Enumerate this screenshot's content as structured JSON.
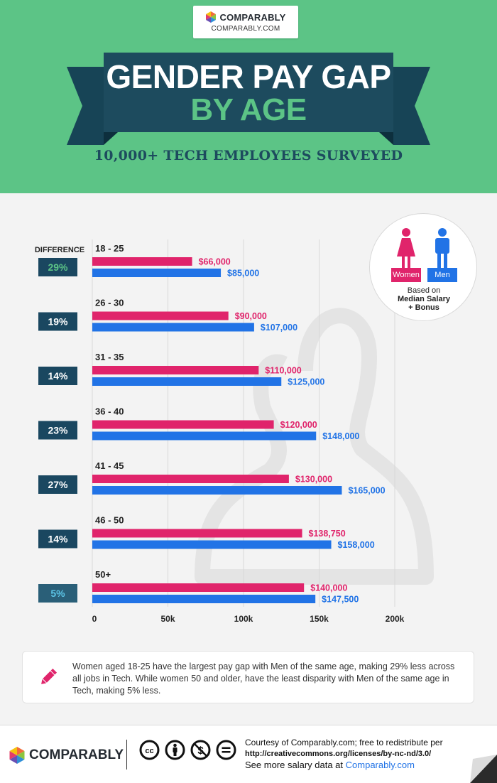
{
  "brand": {
    "name": "COMPARABLY",
    "url": "COMPARABLY.COM"
  },
  "header": {
    "title_line1": "GENDER PAY GAP",
    "title_line2": "BY AGE",
    "subtitle": "10,000+ TECH EMPLOYEES SURVEYED"
  },
  "legend": {
    "women": "Women",
    "men": "Men",
    "note_line1": "Based on",
    "note_line2": "Median Salary",
    "note_line3": "+ Bonus"
  },
  "colors": {
    "women": "#e0246b",
    "men": "#2173e6",
    "diff_dark": "#1a4760",
    "diff_light": "#2a5f78",
    "header_green": "#5cc486"
  },
  "chart_data": {
    "type": "bar",
    "orientation": "horizontal",
    "difference_header": "DIFFERENCE",
    "categories": [
      "18 - 25",
      "26 - 30",
      "31 - 35",
      "36 - 40",
      "41 - 45",
      "46 - 50",
      "50+"
    ],
    "series": [
      {
        "name": "Women",
        "values": [
          66000,
          90000,
          110000,
          120000,
          130000,
          138750,
          140000
        ],
        "labels": [
          "$66,000",
          "$90,000",
          "$110,000",
          "$120,000",
          "$130,000",
          "$138,750",
          "$140,000"
        ]
      },
      {
        "name": "Men",
        "values": [
          85000,
          107000,
          125000,
          148000,
          165000,
          158000,
          147500
        ],
        "labels": [
          "$85,000",
          "$107,000",
          "$125,000",
          "$148,000",
          "$165,000",
          "$158,000",
          "$147,500"
        ]
      }
    ],
    "differences": [
      "29%",
      "19%",
      "14%",
      "23%",
      "27%",
      "14%",
      "5%"
    ],
    "x_ticks": [
      0,
      50000,
      100000,
      150000,
      200000
    ],
    "x_tick_labels": [
      "0",
      "50k",
      "100k",
      "150k",
      "200k"
    ],
    "xlim": [
      0,
      200000
    ],
    "grid": true
  },
  "note": {
    "text": "Women aged 18-25 have the largest pay gap with Men of the same age, making 29% less across all jobs in Tech.  While women 50 and older, have the least disparity with Men of the same age in Tech, making 5% less."
  },
  "footer": {
    "line1": "Courtesy of Comparably.com; free to redistribute per",
    "line2": "http://creativecommons.org/licenses/by-nc-nd/3.0/",
    "line3_prefix": "See more salary data at ",
    "line3_link": "Comparably.com"
  }
}
